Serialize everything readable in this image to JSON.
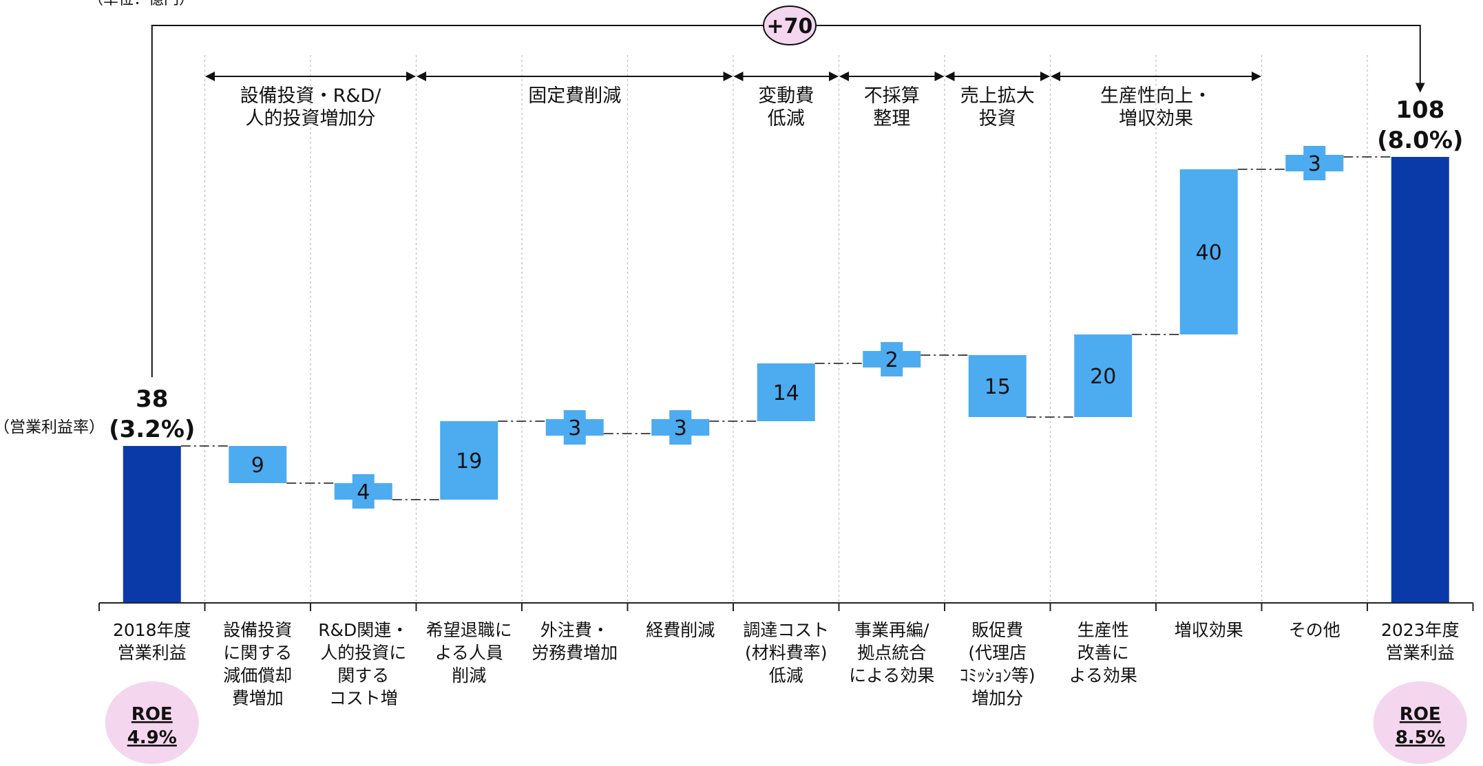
{
  "unit_label": "（単位：億円）",
  "margin_caption": "（営業利益率）",
  "total_change": "+70",
  "colors": {
    "total_bar": "#0a3aa8",
    "step_bar": "#4dabf0",
    "badge_fill": "#f4d6ef",
    "axis": "#222222",
    "guide": "#bbbbbb"
  },
  "chart_data": {
    "type": "bar",
    "subtype": "waterfall",
    "title": "",
    "xlabel": "",
    "ylabel": "",
    "ylim": [
      0,
      142
    ],
    "grid": false,
    "legend": "none",
    "categories": [
      "2018年度\n営業利益",
      "設備投資\nに関する\n減価償却\n費増加",
      "R&D関連・\n人的投資に\n関する\nコスト増",
      "希望退職に\nよる人員\n削減",
      "外注費・\n労務費増加",
      "経費削減",
      "調達コスト\n(材料費率)\n低減",
      "事業再編/\n拠点統合\nによる効果",
      "販促費\n(代理店\nｺﾐｯｼｮﾝ等)\n増加分",
      "生産性\n改善に\nよる効果",
      "増収効果",
      "その他",
      "2023年度\n営業利益"
    ],
    "values": [
      38,
      -9,
      -4,
      19,
      -3,
      3,
      14,
      2,
      -15,
      20,
      40,
      3,
      108
    ],
    "bar_kinds": [
      "total",
      "step",
      "step",
      "step",
      "step",
      "step",
      "step",
      "step",
      "step",
      "step",
      "step",
      "step",
      "total"
    ],
    "data_labels": [
      "38",
      "9",
      "4",
      "19",
      "3",
      "3",
      "14",
      "2",
      "15",
      "20",
      "40",
      "3",
      "108"
    ],
    "total_margins": [
      "(3.2%)",
      "(8.0%)"
    ],
    "groups": [
      {
        "label": "設備投資・R&D/\n人的投資増加分",
        "from": 1,
        "to": 2
      },
      {
        "label": "固定費削減",
        "from": 3,
        "to": 5
      },
      {
        "label": "変動費\n低減",
        "from": 6,
        "to": 6
      },
      {
        "label": "不採算\n整理",
        "from": 7,
        "to": 7
      },
      {
        "label": "売上拡大\n投資",
        "from": 8,
        "to": 8
      },
      {
        "label": "生産性向上・\n増収効果",
        "from": 9,
        "to": 10
      }
    ],
    "roe": [
      {
        "label": "ROE",
        "value": "4.9%",
        "index": 0
      },
      {
        "label": "ROE",
        "value": "8.5%",
        "index": 12
      }
    ]
  }
}
